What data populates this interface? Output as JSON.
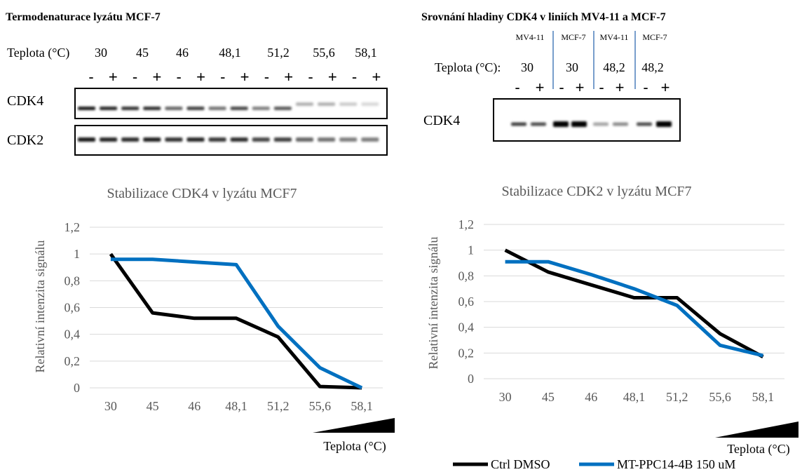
{
  "left_blot": {
    "title": "Termodenaturace lyzátu MCF-7",
    "temp_label": "Teplota (°C)",
    "temps": [
      "30",
      "45",
      "46",
      "48,1",
      "51,2",
      "55,6",
      "58,1"
    ],
    "signs": [
      "-",
      "+"
    ],
    "rows": [
      "CDK4",
      "CDK2"
    ]
  },
  "right_blot": {
    "title": "Srovnání hladiny CDK4 v liniích MV4-11 a MCF-7",
    "lines": [
      "MV4-11",
      "MCF-7",
      "MV4-11",
      "MCF-7"
    ],
    "temp_label": "Teplota (°C):",
    "temps": [
      "30",
      "30",
      "48,2",
      "48,2"
    ],
    "signs": [
      "-",
      "+"
    ],
    "row": "CDK4"
  },
  "colors": {
    "ctrl": "#000000",
    "treated": "#0070c0",
    "grid": "#d9d9d9",
    "axis_text": "#595959"
  },
  "chart_data": [
    {
      "type": "line",
      "title": "Stabilizace CDK4 v lyzátu MCF7",
      "ylabel": "Relativní intenzita signálu",
      "xlabel": "Teplota (°C)",
      "categories": [
        "30",
        "45",
        "46",
        "48,1",
        "51,2",
        "55,6",
        "58,1"
      ],
      "yticks": [
        "0",
        "0,2",
        "0,4",
        "0,6",
        "0,8",
        "1",
        "1,2"
      ],
      "ylim": [
        0,
        1.2
      ],
      "grid": true,
      "series": [
        {
          "name": "Ctrl DMSO",
          "color": "#000000",
          "values": [
            1.0,
            0.56,
            0.52,
            0.52,
            0.38,
            0.01,
            0.0
          ]
        },
        {
          "name": "MT-PPC14-4B 150 uM",
          "color": "#0070c0",
          "values": [
            0.96,
            0.96,
            0.94,
            0.92,
            0.46,
            0.15,
            0.0
          ]
        }
      ]
    },
    {
      "type": "line",
      "title": "Stabilizace CDK2 v lyzátu MCF7",
      "ylabel": "Relativní intenzita signálu",
      "xlabel": "Teplota (°C)",
      "categories": [
        "30",
        "45",
        "46",
        "48,1",
        "51,2",
        "55,6",
        "58,1"
      ],
      "yticks": [
        "0",
        "0,2",
        "0,4",
        "0,6",
        "0,8",
        "1",
        "1,2"
      ],
      "ylim": [
        0,
        1.2
      ],
      "grid": true,
      "legend": "bottom",
      "series": [
        {
          "name": "Ctrl DMSO",
          "color": "#000000",
          "values": [
            1.0,
            0.83,
            0.73,
            0.63,
            0.63,
            0.35,
            0.17
          ]
        },
        {
          "name": "MT-PPC14-4B 150 uM",
          "color": "#0070c0",
          "values": [
            0.91,
            0.91,
            0.81,
            0.7,
            0.57,
            0.26,
            0.18
          ]
        }
      ]
    }
  ]
}
